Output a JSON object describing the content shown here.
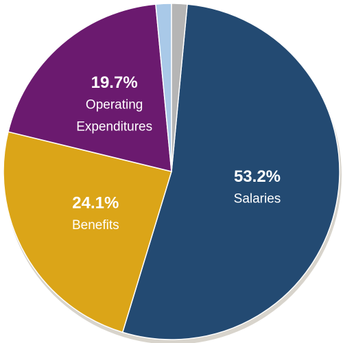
{
  "chart_data": {
    "type": "pie",
    "categories": [
      "Salaries",
      "Benefits",
      "Operating Expenditures",
      null,
      null
    ],
    "values": [
      53.2,
      24.1,
      19.7,
      1.5,
      1.5
    ],
    "value_labels": [
      "53.2%",
      "24.1%",
      "19.7%",
      null,
      null
    ],
    "colors": [
      "#234a72",
      "#dba518",
      "#6b1a6f",
      "#a9c9e8",
      "#b5b5b5"
    ]
  }
}
